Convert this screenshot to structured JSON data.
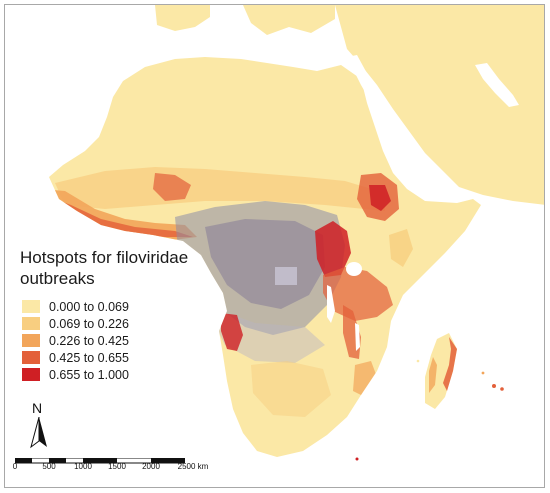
{
  "legend": {
    "title_line1": "Hotspots for filoviridae",
    "title_line2": "outbreaks",
    "items": [
      {
        "label": "0.000 to 0.069",
        "color": "#fbe8a6"
      },
      {
        "label": "0.069 to 0.226",
        "color": "#f8ce80"
      },
      {
        "label": "0.226 to 0.425",
        "color": "#f2a55a"
      },
      {
        "label": "0.425 to 0.655",
        "color": "#e3603a"
      },
      {
        "label": "0.655 to 1.000",
        "color": "#cf1f24"
      }
    ]
  },
  "north_arrow": {
    "label": "N",
    "icon": "north-arrow-icon"
  },
  "scale_bar": {
    "ticks": [
      "0",
      "500",
      "1000",
      "1500",
      "2000",
      "2500 km"
    ]
  },
  "colors": {
    "land": "#fbe8a6",
    "background": "#ffffff",
    "high_risk": "#cf1f24",
    "medium_risk": "#e3603a",
    "low_risk": "#f2a55a",
    "outbreak_range_overlay": "#8c8ca8"
  }
}
